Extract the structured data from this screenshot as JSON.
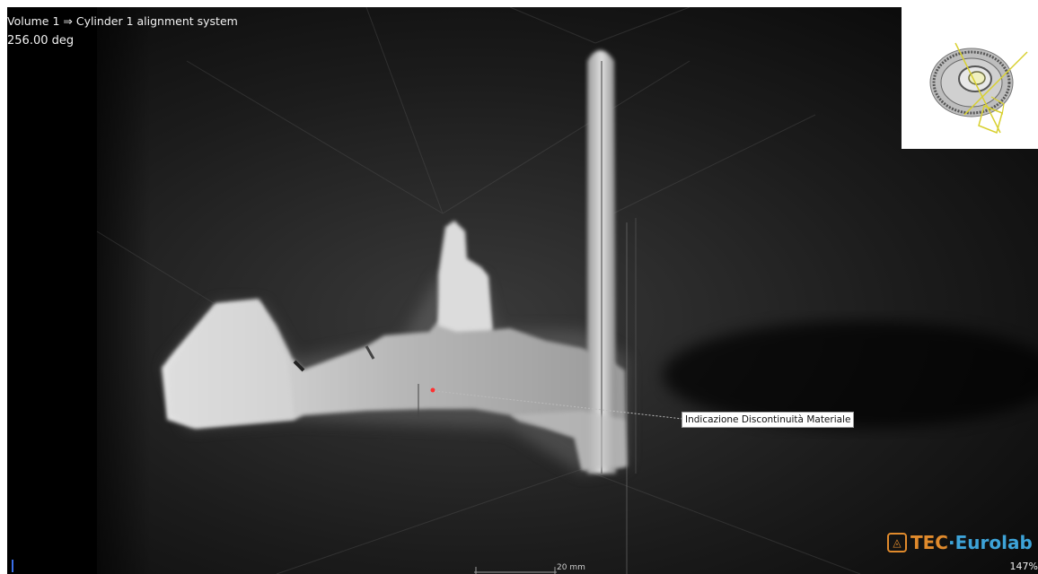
{
  "viewer": {
    "title": "Volume 1 ⇒ Cylinder 1 alignment system",
    "angle": "256.00 deg",
    "annotation_label": "Indicazione Discontinuità Materiale",
    "scale_label": "20 mm",
    "zoom": "147%",
    "thumbnail_icon": "gear-3d-orientation-icon"
  },
  "branding": {
    "logo_part1": "TEC",
    "logo_sep": "·",
    "logo_part2": "Eurolab",
    "logo_icon": "tec-logo-icon",
    "color_orange": "#e08a2c",
    "color_blue": "#3da3d8"
  },
  "colors": {
    "background": "#0a0a0a",
    "annotation_line": "#bbbbbb",
    "marker": "#ff3030"
  }
}
